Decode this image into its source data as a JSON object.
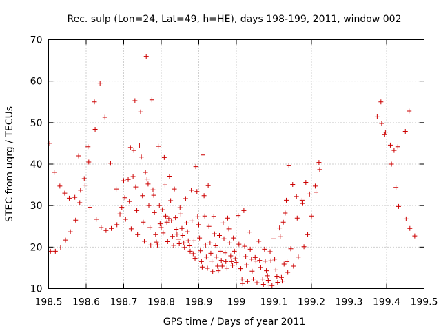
{
  "chart_data": {
    "type": "scatter",
    "title": "Rec. sulp (Lon=24, Lat=49, h=HE), days 198-199, 2011, window 002",
    "xlabel": "GPS time / Days of year 2011",
    "ylabel": "STEC from uqrg / TECUs",
    "xlim": [
      198.5,
      199.5
    ],
    "ylim": [
      10,
      70
    ],
    "xticks": [
      198.5,
      198.6,
      198.7,
      198.8,
      198.9,
      199,
      199.1,
      199.2,
      199.3,
      199.4,
      199.5
    ],
    "xtick_labels": [
      "198.5",
      "198.6",
      "198.7",
      "198.8",
      "198.9",
      "199",
      "199.1",
      "199.2",
      "199.3",
      "199.4",
      "199.5"
    ],
    "yticks": [
      10,
      20,
      30,
      40,
      50,
      60,
      70
    ],
    "ytick_labels": [
      "10",
      "20",
      "30",
      "40",
      "50",
      "60",
      "70"
    ],
    "grid": true,
    "marker": "plus",
    "color": "#cc0000",
    "points": [
      [
        198.503,
        45.0
      ],
      [
        198.505,
        19.0
      ],
      [
        198.515,
        38.0
      ],
      [
        198.518,
        19.0
      ],
      [
        198.53,
        34.7
      ],
      [
        198.532,
        19.8
      ],
      [
        198.543,
        33.0
      ],
      [
        198.545,
        21.7
      ],
      [
        198.555,
        31.8
      ],
      [
        198.558,
        23.7
      ],
      [
        198.57,
        32.0
      ],
      [
        198.572,
        26.5
      ],
      [
        198.58,
        42.0
      ],
      [
        198.583,
        30.7
      ],
      [
        198.585,
        33.7
      ],
      [
        198.595,
        36.5
      ],
      [
        198.597,
        34.9
      ],
      [
        198.605,
        44.2
      ],
      [
        198.607,
        40.5
      ],
      [
        198.61,
        29.6
      ],
      [
        198.622,
        55.0
      ],
      [
        198.624,
        48.4
      ],
      [
        198.627,
        26.7
      ],
      [
        198.637,
        59.5
      ],
      [
        198.64,
        24.7
      ],
      [
        198.65,
        51.3
      ],
      [
        198.653,
        24.0
      ],
      [
        198.665,
        40.2
      ],
      [
        198.667,
        24.5
      ],
      [
        198.68,
        34.0
      ],
      [
        198.682,
        25.4
      ],
      [
        198.69,
        28.0
      ],
      [
        198.695,
        29.6
      ],
      [
        198.7,
        36.0
      ],
      [
        198.703,
        31.9
      ],
      [
        198.705,
        26.7
      ],
      [
        198.712,
        36.3
      ],
      [
        198.715,
        31.0
      ],
      [
        198.718,
        44.0
      ],
      [
        198.72,
        24.4
      ],
      [
        198.725,
        37.0
      ],
      [
        198.727,
        43.3
      ],
      [
        198.73,
        55.3
      ],
      [
        198.732,
        34.5
      ],
      [
        198.735,
        28.8
      ],
      [
        198.737,
        23.0
      ],
      [
        198.742,
        44.4
      ],
      [
        198.745,
        52.6
      ],
      [
        198.747,
        41.7
      ],
      [
        198.75,
        32.4
      ],
      [
        198.752,
        26.0
      ],
      [
        198.755,
        21.4
      ],
      [
        198.758,
        38.0
      ],
      [
        198.76,
        66.0
      ],
      [
        198.762,
        36.4
      ],
      [
        198.765,
        35.2
      ],
      [
        198.767,
        30.0
      ],
      [
        198.77,
        24.7
      ],
      [
        198.772,
        20.5
      ],
      [
        198.775,
        55.5
      ],
      [
        198.778,
        33.8
      ],
      [
        198.78,
        32.5
      ],
      [
        198.782,
        28.3
      ],
      [
        198.785,
        23.0
      ],
      [
        198.787,
        21.2
      ],
      [
        198.79,
        20.5
      ],
      [
        198.792,
        44.3
      ],
      [
        198.795,
        30.0
      ],
      [
        198.797,
        25.6
      ],
      [
        198.8,
        24.7
      ],
      [
        198.803,
        29.0
      ],
      [
        198.805,
        23.4
      ],
      [
        198.808,
        41.6
      ],
      [
        198.81,
        35.0
      ],
      [
        198.812,
        27.5
      ],
      [
        198.815,
        26.0
      ],
      [
        198.817,
        21.3
      ],
      [
        198.82,
        26.9
      ],
      [
        198.822,
        37.1
      ],
      [
        198.825,
        31.2
      ],
      [
        198.827,
        26.3
      ],
      [
        198.83,
        22.6
      ],
      [
        198.833,
        20.4
      ],
      [
        198.835,
        34.0
      ],
      [
        198.838,
        27.1
      ],
      [
        198.84,
        24.3
      ],
      [
        198.842,
        23.1
      ],
      [
        198.845,
        21.9
      ],
      [
        198.848,
        20.8
      ],
      [
        198.85,
        29.5
      ],
      [
        198.852,
        28.0
      ],
      [
        198.855,
        24.5
      ],
      [
        198.857,
        22.8
      ],
      [
        198.86,
        21.0
      ],
      [
        198.862,
        19.9
      ],
      [
        198.865,
        31.7
      ],
      [
        198.867,
        25.8
      ],
      [
        198.87,
        23.7
      ],
      [
        198.872,
        21.5
      ],
      [
        198.875,
        20.3
      ],
      [
        198.877,
        19.0
      ],
      [
        198.88,
        33.7
      ],
      [
        198.882,
        26.3
      ],
      [
        198.885,
        18.4
      ],
      [
        198.887,
        21.5
      ],
      [
        198.89,
        17.3
      ],
      [
        198.892,
        39.4
      ],
      [
        198.895,
        33.4
      ],
      [
        198.897,
        27.3
      ],
      [
        198.9,
        25.4
      ],
      [
        198.902,
        22.2
      ],
      [
        198.904,
        19.1
      ],
      [
        198.907,
        16.5
      ],
      [
        198.909,
        15.2
      ],
      [
        198.911,
        42.2
      ],
      [
        198.914,
        32.4
      ],
      [
        198.916,
        27.5
      ],
      [
        198.918,
        20.5
      ],
      [
        198.92,
        17.6
      ],
      [
        198.923,
        14.9
      ],
      [
        198.925,
        34.8
      ],
      [
        198.927,
        25.0
      ],
      [
        198.93,
        21.0
      ],
      [
        198.932,
        18.5
      ],
      [
        198.935,
        16.6
      ],
      [
        198.937,
        14.1
      ],
      [
        198.94,
        27.4
      ],
      [
        198.942,
        23.2
      ],
      [
        198.945,
        20.3
      ],
      [
        198.947,
        17.6
      ],
      [
        198.95,
        15.4
      ],
      [
        198.952,
        14.3
      ],
      [
        198.955,
        22.8
      ],
      [
        198.957,
        19.0
      ],
      [
        198.96,
        16.8
      ],
      [
        198.962,
        15.4
      ],
      [
        198.965,
        25.8
      ],
      [
        198.967,
        22.0
      ],
      [
        198.97,
        18.6
      ],
      [
        198.972,
        16.5
      ],
      [
        198.975,
        14.9
      ],
      [
        198.977,
        27.0
      ],
      [
        198.98,
        24.4
      ],
      [
        198.982,
        21.0
      ],
      [
        198.985,
        17.9
      ],
      [
        198.987,
        16.5
      ],
      [
        198.99,
        15.6
      ],
      [
        198.992,
        22.2
      ],
      [
        198.995,
        19.0
      ],
      [
        198.997,
        17.2
      ],
      [
        199.0,
        16.3
      ],
      [
        199.005,
        27.6
      ],
      [
        199.007,
        20.7
      ],
      [
        199.01,
        18.3
      ],
      [
        199.012,
        14.8
      ],
      [
        199.015,
        12.3
      ],
      [
        199.017,
        11.2
      ],
      [
        199.02,
        28.8
      ],
      [
        199.022,
        20.2
      ],
      [
        199.025,
        17.7
      ],
      [
        199.027,
        15.7
      ],
      [
        199.03,
        11.7
      ],
      [
        199.035,
        23.6
      ],
      [
        199.037,
        19.5
      ],
      [
        199.04,
        17.1
      ],
      [
        199.042,
        14.2
      ],
      [
        199.045,
        12.3
      ],
      [
        199.05,
        17.5
      ],
      [
        199.052,
        16.6
      ],
      [
        199.055,
        11.4
      ],
      [
        199.06,
        21.4
      ],
      [
        199.062,
        16.8
      ],
      [
        199.065,
        15.1
      ],
      [
        199.07,
        12.3
      ],
      [
        199.072,
        11.0
      ],
      [
        199.075,
        19.5
      ],
      [
        199.077,
        16.6
      ],
      [
        199.08,
        14.3
      ],
      [
        199.083,
        13.1
      ],
      [
        199.085,
        12.0
      ],
      [
        199.087,
        10.8
      ],
      [
        199.09,
        18.9
      ],
      [
        199.092,
        16.7
      ],
      [
        199.095,
        10.7
      ],
      [
        199.1,
        22.0
      ],
      [
        199.102,
        17.1
      ],
      [
        199.105,
        14.5
      ],
      [
        199.108,
        13.0
      ],
      [
        199.11,
        11.5
      ],
      [
        199.115,
        24.6
      ],
      [
        199.117,
        22.5
      ],
      [
        199.12,
        12.7
      ],
      [
        199.122,
        11.8
      ],
      [
        199.125,
        26.0
      ],
      [
        199.127,
        15.9
      ],
      [
        199.13,
        28.2
      ],
      [
        199.133,
        31.3
      ],
      [
        199.135,
        16.5
      ],
      [
        199.137,
        13.9
      ],
      [
        199.14,
        39.6
      ],
      [
        199.145,
        19.6
      ],
      [
        199.15,
        35.1
      ],
      [
        199.152,
        15.4
      ],
      [
        199.16,
        32.2
      ],
      [
        199.162,
        27.0
      ],
      [
        199.165,
        17.6
      ],
      [
        199.175,
        31.3
      ],
      [
        199.177,
        30.5
      ],
      [
        199.18,
        20.1
      ],
      [
        199.185,
        35.6
      ],
      [
        199.19,
        23.0
      ],
      [
        199.195,
        32.8
      ],
      [
        199.2,
        27.5
      ],
      [
        199.21,
        34.7
      ],
      [
        199.212,
        33.2
      ],
      [
        199.22,
        40.4
      ],
      [
        199.222,
        38.7
      ],
      [
        199.375,
        51.4
      ],
      [
        199.385,
        55.0
      ],
      [
        199.387,
        49.8
      ],
      [
        199.395,
        47.1
      ],
      [
        199.397,
        47.7
      ],
      [
        199.41,
        44.6
      ],
      [
        199.413,
        40.0
      ],
      [
        199.42,
        43.3
      ],
      [
        199.425,
        34.4
      ],
      [
        199.43,
        44.2
      ],
      [
        199.432,
        29.8
      ],
      [
        199.45,
        47.9
      ],
      [
        199.452,
        26.8
      ],
      [
        199.46,
        52.8
      ],
      [
        199.462,
        24.5
      ],
      [
        199.475,
        22.7
      ]
    ]
  }
}
